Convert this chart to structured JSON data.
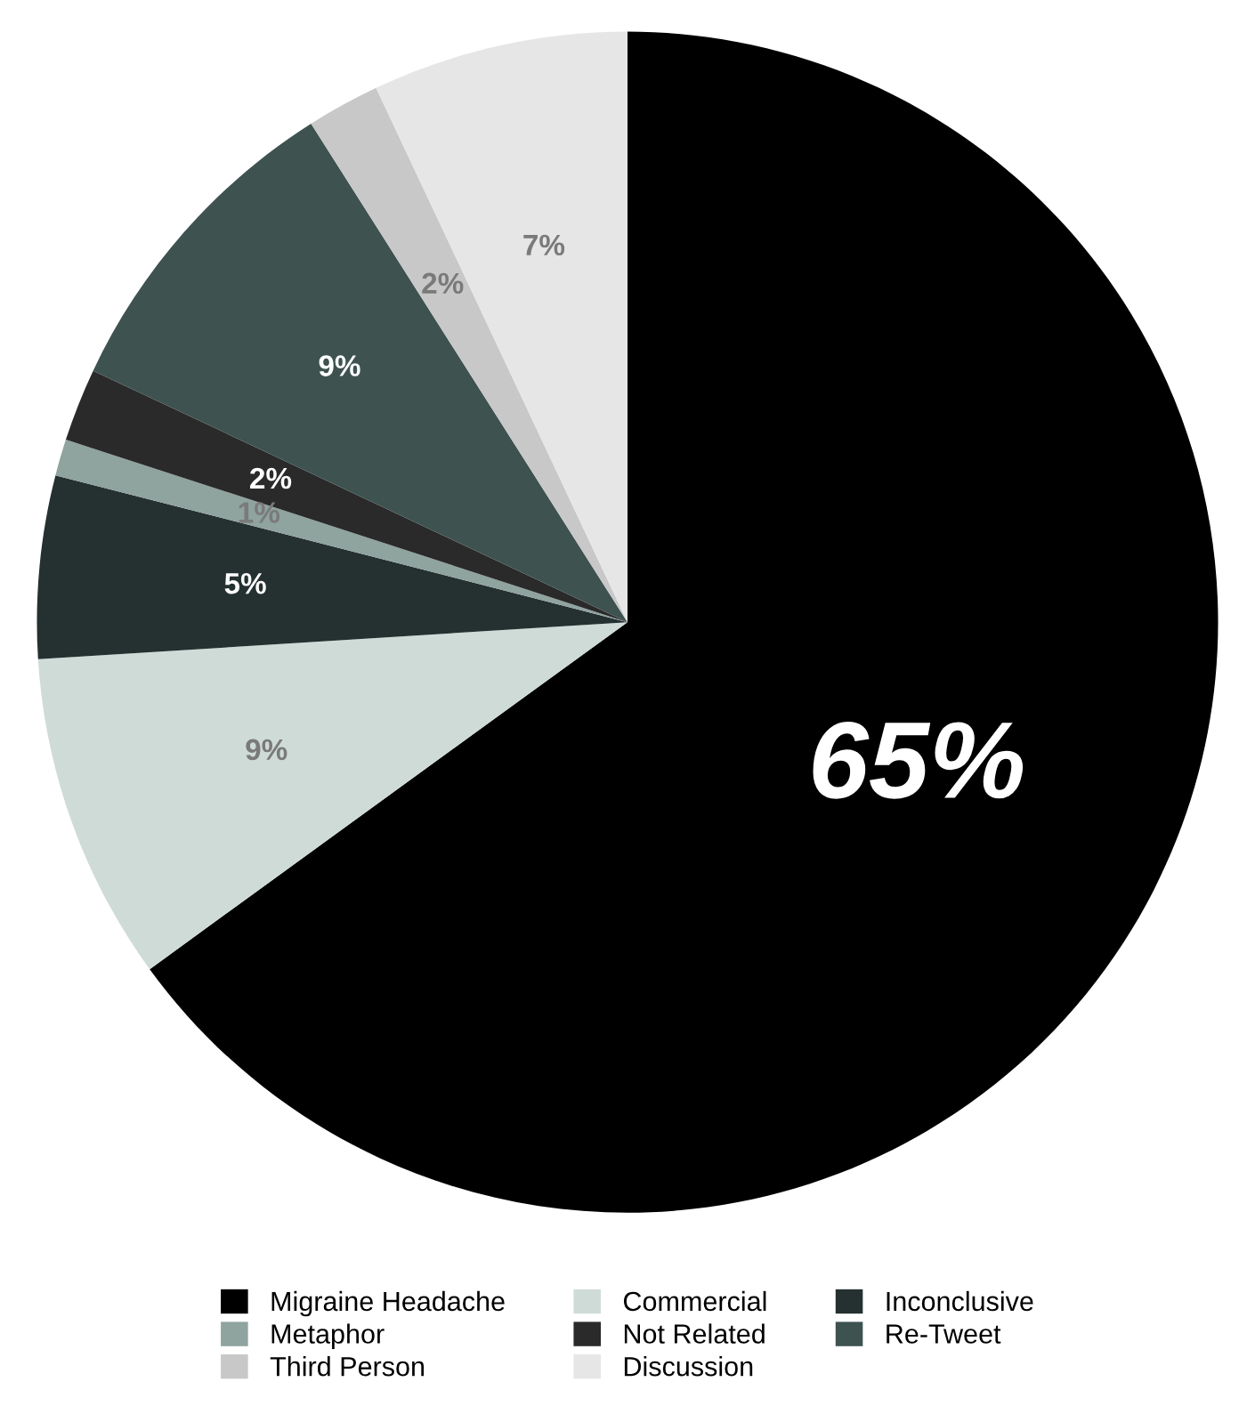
{
  "chart_data": {
    "type": "pie",
    "categories": [
      "Migraine Headache",
      "Commercial",
      "Inconclusive",
      "Metaphor",
      "Not Related",
      "Re-Tweet",
      "Third Person",
      "Discussion"
    ],
    "values": [
      65,
      9,
      5,
      1,
      2,
      9,
      2,
      7
    ],
    "colors": [
      "#000000",
      "#cfdbd7",
      "#253030",
      "#8fa39f",
      "#2a2a2a",
      "#3e5250",
      "#c8c8c8",
      "#e6e6e6"
    ],
    "value_labels": [
      "65%",
      "9%",
      "5%",
      "1%",
      "2%",
      "9%",
      "2%",
      "7%"
    ],
    "legend": "bottom"
  }
}
